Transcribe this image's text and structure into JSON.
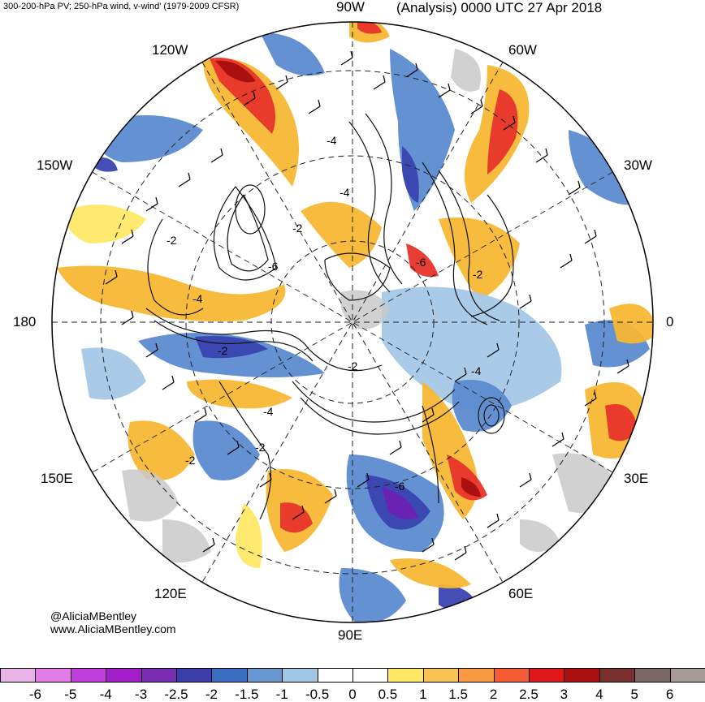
{
  "header": {
    "left_text": "300-200-hPa PV; 250-hPa wind, v-wind' (1979-2009 CFSR)",
    "right_text": "(Analysis) 0000 UTC 27 Apr 2018"
  },
  "map": {
    "projection": "north-polar-stereographic",
    "longitude_labels": {
      "lon_90w": "90W",
      "lon_120w": "120W",
      "lon_60w": "60W",
      "lon_150w": "150W",
      "lon_30w": "30W",
      "lon_180": "180",
      "lon_0": "0",
      "lon_150e": "150E",
      "lon_30e": "30E",
      "lon_120e": "120E",
      "lon_60e": "60E",
      "lon_90e": "90E"
    },
    "contour_labels": {
      "c1": "-4",
      "c2": "-2",
      "c3": "-2",
      "c4": "-6",
      "c5": "-4",
      "c6": "-2",
      "c7": "-4",
      "c8": "-2",
      "c9": "-6",
      "c10": "-4",
      "c11": "-2",
      "c12": "-2",
      "c13": "-4",
      "c14": "-6",
      "c15": "-2"
    },
    "colors": {
      "land": "#c9c9c9",
      "pos_light": "#ffe866",
      "pos_mid": "#f7b733",
      "pos_strong": "#e8342a",
      "pos_extreme": "#a50e0e",
      "neg_light": "#a5c8e6",
      "neg_mid": "#5b8bd0",
      "neg_strong": "#3a44b0",
      "neg_extreme": "#6a22b5"
    }
  },
  "credits": {
    "twitter": "@AliciaMBentley",
    "website": "www.AliciaMBentley.com"
  },
  "colorbar": {
    "colors": [
      "#e8b4e8",
      "#e37ce8",
      "#c040dc",
      "#a31dc8",
      "#7a2cb0",
      "#3c3ea8",
      "#3a6cc0",
      "#6796d0",
      "#a4c6e6",
      "#ffffff",
      "#ffffff",
      "#ffe966",
      "#f8c255",
      "#f79a3f",
      "#f45d33",
      "#e01818",
      "#a80e0e",
      "#7a3030",
      "#7a6868",
      "#a89a9a"
    ],
    "ticks": [
      "-6",
      "-5",
      "-4",
      "-3",
      "-2.5",
      "-2",
      "-1.5",
      "-1",
      "-0.5",
      "0",
      "0.5",
      "1",
      "1.5",
      "2",
      "2.5",
      "3",
      "4",
      "5",
      "6"
    ]
  }
}
